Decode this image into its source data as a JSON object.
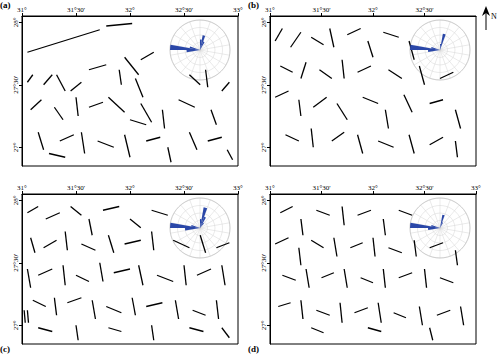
{
  "chart_data": [
    {
      "type": "segments",
      "title": "(a)",
      "color": "#000000",
      "grid": false,
      "xlim": [
        31,
        33
      ],
      "ylim": [
        26.85,
        28.05
      ],
      "xticks": [
        {
          "value": 31,
          "label": "31°"
        },
        {
          "value": 31.5,
          "label": "31°30'"
        },
        {
          "value": 32,
          "label": "32°"
        },
        {
          "value": 32.5,
          "label": "32°30'"
        },
        {
          "value": 33,
          "label": "33°"
        }
      ],
      "yticks": [
        {
          "value": 27,
          "label": "27°"
        },
        {
          "value": 27.5,
          "label": "27°30'"
        },
        {
          "value": 28,
          "label": "28°"
        }
      ],
      "segments": [
        [
          31.05,
          27.76,
          31.72,
          27.94
        ],
        [
          31.78,
          27.97,
          32.02,
          27.99
        ],
        [
          31.62,
          27.62,
          31.78,
          27.66
        ],
        [
          31.95,
          27.72,
          32.08,
          27.58
        ],
        [
          32.1,
          27.7,
          32.22,
          27.76
        ],
        [
          31.05,
          27.52,
          31.1,
          27.58
        ],
        [
          31.2,
          27.5,
          31.28,
          27.58
        ],
        [
          31.32,
          27.58,
          31.4,
          27.45
        ],
        [
          31.45,
          27.45,
          31.55,
          27.52
        ],
        [
          31.9,
          27.62,
          31.92,
          27.5
        ],
        [
          32.05,
          27.55,
          32.12,
          27.4
        ],
        [
          32.55,
          27.58,
          32.65,
          27.5
        ],
        [
          32.7,
          27.62,
          32.72,
          27.48
        ],
        [
          32.85,
          27.45,
          32.92,
          27.52
        ],
        [
          31.08,
          27.3,
          31.18,
          27.38
        ],
        [
          31.3,
          27.32,
          31.38,
          27.22
        ],
        [
          31.5,
          27.4,
          31.52,
          27.25
        ],
        [
          31.62,
          27.32,
          31.75,
          27.36
        ],
        [
          31.8,
          27.4,
          31.95,
          27.28
        ],
        [
          32.1,
          27.35,
          32.2,
          27.2
        ],
        [
          32.3,
          27.3,
          32.32,
          27.15
        ],
        [
          32.45,
          27.38,
          32.6,
          27.32
        ],
        [
          32.75,
          27.3,
          32.8,
          27.18
        ],
        [
          31.15,
          27.12,
          31.2,
          26.98
        ],
        [
          31.35,
          27.05,
          31.48,
          27.1
        ],
        [
          31.55,
          27.12,
          31.58,
          26.95
        ],
        [
          31.7,
          27.05,
          31.85,
          27.0
        ],
        [
          31.95,
          27.1,
          32.0,
          26.92
        ],
        [
          32.15,
          27.05,
          32.28,
          27.08
        ],
        [
          32.35,
          27.0,
          32.38,
          26.88
        ],
        [
          32.55,
          27.12,
          32.62,
          26.98
        ],
        [
          32.72,
          27.05,
          32.85,
          27.08
        ],
        [
          32.9,
          26.98,
          32.95,
          26.9
        ],
        [
          31.25,
          26.95,
          31.4,
          26.92
        ],
        [
          32.0,
          27.22,
          32.15,
          27.18
        ]
      ],
      "rose": {
        "color": "#2a47a8",
        "bin_width": 10,
        "rlim": [
          0,
          1
        ],
        "rticks": [
          0,
          0.25,
          0.5,
          0.75,
          1
        ],
        "directions": [
          0,
          10,
          20,
          260,
          270,
          280
        ],
        "values": [
          0.35,
          0.5,
          0.3,
          0.45,
          1.0,
          0.35
        ]
      }
    },
    {
      "type": "segments",
      "title": "(b)",
      "color": "#000000",
      "grid": false,
      "xlim": [
        31,
        33
      ],
      "ylim": [
        26.85,
        28.05
      ],
      "xticks": [
        {
          "value": 31,
          "label": "31°"
        },
        {
          "value": 31.5,
          "label": "31°30'"
        },
        {
          "value": 32,
          "label": "32°"
        },
        {
          "value": 32.5,
          "label": "32°30'"
        }
      ],
      "yticks": [
        {
          "value": 27,
          "label": "27°"
        },
        {
          "value": 27.5,
          "label": "27°30'"
        },
        {
          "value": 28,
          "label": "28°"
        }
      ],
      "segments": [
        [
          31.05,
          27.85,
          31.12,
          27.95
        ],
        [
          31.2,
          27.8,
          31.3,
          27.92
        ],
        [
          31.4,
          27.88,
          31.52,
          27.82
        ],
        [
          31.58,
          27.95,
          31.62,
          27.8
        ],
        [
          31.75,
          27.9,
          31.88,
          27.95
        ],
        [
          31.95,
          27.85,
          32.0,
          27.72
        ],
        [
          32.1,
          27.92,
          32.25,
          27.88
        ],
        [
          32.35,
          27.85,
          32.4,
          27.7
        ],
        [
          31.1,
          27.65,
          31.22,
          27.6
        ],
        [
          31.3,
          27.55,
          31.35,
          27.68
        ],
        [
          31.48,
          27.62,
          31.6,
          27.55
        ],
        [
          31.7,
          27.7,
          31.72,
          27.55
        ],
        [
          31.85,
          27.6,
          31.98,
          27.65
        ],
        [
          32.15,
          27.62,
          32.28,
          27.55
        ],
        [
          32.45,
          27.65,
          32.5,
          27.5
        ],
        [
          32.65,
          27.55,
          32.78,
          27.6
        ],
        [
          31.05,
          27.4,
          31.18,
          27.45
        ],
        [
          31.28,
          27.38,
          31.3,
          27.25
        ],
        [
          31.42,
          27.32,
          31.55,
          27.4
        ],
        [
          31.65,
          27.35,
          31.75,
          27.22
        ],
        [
          31.9,
          27.4,
          32.05,
          27.35
        ],
        [
          32.12,
          27.3,
          32.15,
          27.15
        ],
        [
          32.3,
          27.42,
          32.38,
          27.28
        ],
        [
          32.55,
          27.35,
          32.68,
          27.38
        ],
        [
          32.8,
          27.3,
          32.85,
          27.15
        ],
        [
          31.15,
          27.1,
          31.28,
          27.05
        ],
        [
          31.4,
          27.15,
          31.42,
          27.0
        ],
        [
          31.6,
          27.05,
          31.72,
          27.12
        ],
        [
          31.85,
          27.1,
          31.9,
          26.95
        ],
        [
          32.05,
          27.05,
          32.2,
          27.0
        ],
        [
          32.35,
          27.1,
          32.4,
          26.95
        ],
        [
          32.55,
          27.02,
          32.68,
          27.08
        ],
        [
          32.8,
          27.05,
          32.82,
          26.92
        ]
      ],
      "rose": {
        "color": "#2a47a8",
        "bin_width": 10,
        "rlim": [
          0,
          1
        ],
        "rticks": [
          0,
          0.25,
          0.5,
          0.75,
          1
        ],
        "directions": [
          0,
          10,
          260,
          270,
          280
        ],
        "values": [
          0.2,
          0.55,
          0.4,
          1.0,
          0.3
        ]
      }
    },
    {
      "type": "segments",
      "title": "(c)",
      "color": "#000000",
      "grid": false,
      "xlim": [
        31,
        33
      ],
      "ylim": [
        26.85,
        28.05
      ],
      "xticks": [
        {
          "value": 31,
          "label": "31°"
        },
        {
          "value": 31.5,
          "label": "31°30'"
        },
        {
          "value": 32,
          "label": "32°"
        },
        {
          "value": 32.5,
          "label": "32°30'"
        },
        {
          "value": 33,
          "label": "33°"
        }
      ],
      "yticks": [
        {
          "value": 27,
          "label": "27°"
        },
        {
          "value": 27.5,
          "label": "27°30'"
        },
        {
          "value": 28,
          "label": "28°"
        }
      ],
      "segments": [
        [
          31.05,
          27.9,
          31.15,
          27.95
        ],
        [
          31.22,
          27.85,
          31.35,
          27.9
        ],
        [
          31.45,
          27.95,
          31.55,
          27.88
        ],
        [
          31.62,
          27.85,
          31.65,
          27.72
        ],
        [
          31.75,
          27.92,
          31.9,
          27.95
        ],
        [
          32.0,
          27.85,
          32.1,
          27.78
        ],
        [
          32.2,
          27.92,
          32.35,
          27.88
        ],
        [
          31.08,
          27.7,
          31.12,
          27.58
        ],
        [
          31.2,
          27.62,
          31.32,
          27.68
        ],
        [
          31.4,
          27.75,
          31.42,
          27.6
        ],
        [
          31.55,
          27.65,
          31.68,
          27.6
        ],
        [
          31.8,
          27.72,
          31.85,
          27.58
        ],
        [
          31.95,
          27.65,
          32.1,
          27.68
        ],
        [
          32.2,
          27.75,
          32.22,
          27.6
        ],
        [
          32.4,
          27.68,
          32.55,
          27.62
        ],
        [
          32.65,
          27.72,
          32.7,
          27.58
        ],
        [
          32.8,
          27.62,
          32.92,
          27.66
        ],
        [
          31.05,
          27.45,
          31.08,
          27.3
        ],
        [
          31.15,
          27.4,
          31.28,
          27.45
        ],
        [
          31.38,
          27.48,
          31.4,
          27.32
        ],
        [
          31.5,
          27.4,
          31.62,
          27.35
        ],
        [
          31.72,
          27.5,
          31.75,
          27.35
        ],
        [
          31.85,
          27.42,
          32.0,
          27.45
        ],
        [
          32.08,
          27.48,
          32.12,
          27.32
        ],
        [
          32.25,
          27.4,
          32.4,
          27.35
        ],
        [
          32.5,
          27.48,
          32.52,
          27.32
        ],
        [
          32.62,
          27.4,
          32.75,
          27.45
        ],
        [
          32.85,
          27.48,
          32.88,
          27.32
        ],
        [
          31.1,
          27.2,
          31.22,
          27.15
        ],
        [
          31.3,
          27.22,
          31.32,
          27.08
        ],
        [
          31.42,
          27.18,
          31.55,
          27.22
        ],
        [
          31.65,
          27.2,
          31.68,
          27.05
        ],
        [
          31.78,
          27.15,
          31.92,
          27.1
        ],
        [
          32.02,
          27.22,
          32.05,
          27.08
        ],
        [
          32.15,
          27.15,
          32.3,
          27.18
        ],
        [
          32.42,
          27.2,
          32.45,
          27.05
        ],
        [
          32.58,
          27.12,
          32.7,
          27.08
        ],
        [
          32.8,
          27.2,
          32.82,
          27.05
        ],
        [
          31.15,
          26.98,
          31.28,
          26.95
        ],
        [
          31.5,
          27.0,
          31.52,
          26.88
        ],
        [
          31.8,
          26.98,
          31.92,
          26.95
        ],
        [
          32.2,
          27.0,
          32.22,
          26.88
        ],
        [
          32.55,
          26.98,
          32.68,
          26.95
        ],
        [
          32.85,
          26.98,
          32.92,
          26.9
        ],
        [
          31.02,
          27.12,
          31.03,
          27.02
        ],
        [
          31.05,
          27.12,
          31.06,
          27.02
        ]
      ],
      "rose": {
        "color": "#2a47a8",
        "bin_width": 10,
        "rlim": [
          0,
          1
        ],
        "rticks": [
          0,
          0.25,
          0.5,
          0.75,
          1
        ],
        "directions": [
          0,
          10,
          20,
          30,
          260,
          270,
          280
        ],
        "values": [
          0.3,
          0.7,
          0.4,
          0.2,
          0.5,
          1.0,
          0.3
        ]
      }
    },
    {
      "type": "segments",
      "title": "(d)",
      "color": "#000000",
      "grid": false,
      "xlim": [
        31,
        33
      ],
      "ylim": [
        26.85,
        28.05
      ],
      "xticks": [
        {
          "value": 31,
          "label": "31°"
        },
        {
          "value": 31.5,
          "label": "31°30'"
        },
        {
          "value": 32,
          "label": "32°"
        },
        {
          "value": 32.5,
          "label": "32°30'"
        },
        {
          "value": 33,
          "label": "33°"
        }
      ],
      "yticks": [
        {
          "value": 27,
          "label": "27°"
        },
        {
          "value": 27.5,
          "label": "27°30'"
        },
        {
          "value": 28,
          "label": "28°"
        }
      ],
      "segments": [
        [
          31.1,
          27.9,
          31.22,
          27.95
        ],
        [
          31.3,
          27.85,
          31.32,
          27.72
        ],
        [
          31.45,
          27.92,
          31.58,
          27.88
        ],
        [
          31.7,
          27.95,
          31.72,
          27.8
        ],
        [
          31.85,
          27.88,
          31.98,
          27.92
        ],
        [
          32.1,
          27.85,
          32.12,
          27.72
        ],
        [
          32.25,
          27.92,
          32.38,
          27.88
        ],
        [
          31.05,
          27.65,
          31.18,
          27.7
        ],
        [
          31.28,
          27.62,
          31.3,
          27.48
        ],
        [
          31.4,
          27.68,
          31.52,
          27.62
        ],
        [
          31.62,
          27.7,
          31.65,
          27.55
        ],
        [
          31.78,
          27.62,
          31.9,
          27.66
        ],
        [
          32.0,
          27.7,
          32.02,
          27.55
        ],
        [
          32.15,
          27.62,
          32.28,
          27.58
        ],
        [
          32.4,
          27.68,
          32.42,
          27.55
        ],
        [
          32.55,
          27.62,
          32.68,
          27.66
        ],
        [
          32.8,
          27.6,
          32.82,
          27.48
        ],
        [
          31.12,
          27.4,
          31.25,
          27.36
        ],
        [
          31.35,
          27.45,
          31.38,
          27.3
        ],
        [
          31.5,
          27.38,
          31.62,
          27.42
        ],
        [
          31.72,
          27.45,
          31.75,
          27.3
        ],
        [
          31.88,
          27.38,
          32.0,
          27.34
        ],
        [
          32.1,
          27.45,
          32.12,
          27.3
        ],
        [
          32.25,
          27.38,
          32.38,
          27.42
        ],
        [
          32.5,
          27.45,
          32.52,
          27.3
        ],
        [
          32.65,
          27.38,
          32.78,
          27.34
        ],
        [
          31.08,
          27.15,
          31.2,
          27.18
        ],
        [
          31.3,
          27.2,
          31.32,
          27.05
        ],
        [
          31.45,
          27.12,
          31.58,
          27.08
        ],
        [
          31.68,
          27.18,
          31.7,
          27.02
        ],
        [
          31.82,
          27.1,
          31.95,
          27.14
        ],
        [
          32.05,
          27.18,
          32.08,
          27.02
        ],
        [
          32.2,
          27.1,
          32.32,
          27.06
        ],
        [
          32.45,
          27.15,
          32.48,
          27.0
        ],
        [
          32.62,
          27.08,
          32.75,
          27.12
        ],
        [
          32.85,
          27.15,
          32.88,
          27.0
        ],
        [
          31.4,
          26.98,
          31.52,
          26.94
        ],
        [
          31.95,
          26.98,
          32.08,
          26.95
        ],
        [
          32.55,
          26.98,
          32.58,
          26.88
        ]
      ],
      "rose": {
        "color": "#2a47a8",
        "bin_width": 10,
        "rlim": [
          0,
          1
        ],
        "rticks": [
          0,
          0.25,
          0.5,
          0.75,
          1
        ],
        "directions": [
          10,
          20,
          260,
          270,
          280
        ],
        "values": [
          0.45,
          0.2,
          0.4,
          1.0,
          0.3
        ]
      }
    }
  ],
  "north_label": "N"
}
